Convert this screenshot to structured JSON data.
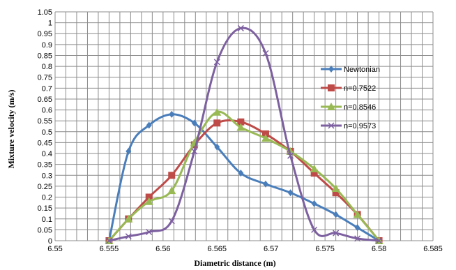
{
  "chart_data": {
    "type": "scatter",
    "xlabel": "Diametric distance (m)",
    "ylabel": "Mixture velocity (m/s)",
    "xlim": [
      6.55,
      6.585
    ],
    "ylim": [
      0,
      1.05
    ],
    "x_ticks": [
      "6.55",
      "6.555",
      "6.56",
      "6.565",
      "6.57",
      "6.575",
      "6.58",
      "6.585"
    ],
    "y_ticks": [
      "0",
      "0.05",
      "0.1",
      "0.15",
      "0.2",
      "0.25",
      "0.3",
      "0.35",
      "0.4",
      "0.45",
      "0.5",
      "0.55",
      "0.6",
      "0.65",
      "0.7",
      "0.75",
      "0.8",
      "0.85",
      "0.9",
      "0.95",
      "1",
      "1.05"
    ],
    "grid": true,
    "legend_position": "right",
    "series": [
      {
        "name": "Newtonian",
        "color": "#4a7ebb",
        "marker": "diamond",
        "x": [
          6.555,
          6.5568,
          6.5587,
          6.5608,
          6.5629,
          6.565,
          6.5672,
          6.5695,
          6.5718,
          6.574,
          6.576,
          6.578,
          6.58
        ],
        "y": [
          0.0,
          0.41,
          0.53,
          0.58,
          0.54,
          0.43,
          0.31,
          0.26,
          0.22,
          0.17,
          0.12,
          0.06,
          0.0
        ]
      },
      {
        "name": "n=0.7522",
        "color": "#be4b48",
        "marker": "square",
        "x": [
          6.555,
          6.5568,
          6.5587,
          6.5608,
          6.5629,
          6.565,
          6.5672,
          6.5695,
          6.5718,
          6.574,
          6.576,
          6.578,
          6.58
        ],
        "y": [
          0.0,
          0.1,
          0.2,
          0.3,
          0.44,
          0.54,
          0.545,
          0.49,
          0.41,
          0.31,
          0.22,
          0.12,
          0.0
        ]
      },
      {
        "name": "n=0.8546",
        "color": "#98b954",
        "marker": "triangle",
        "x": [
          6.555,
          6.5568,
          6.5587,
          6.5608,
          6.5629,
          6.565,
          6.5672,
          6.5695,
          6.5718,
          6.574,
          6.576,
          6.578,
          6.58
        ],
        "y": [
          0.0,
          0.1,
          0.18,
          0.23,
          0.45,
          0.59,
          0.52,
          0.47,
          0.41,
          0.33,
          0.24,
          0.12,
          0.0
        ]
      },
      {
        "name": "n=0.9573",
        "color": "#7d60a0",
        "marker": "x",
        "x": [
          6.555,
          6.5568,
          6.5587,
          6.5608,
          6.5629,
          6.565,
          6.5672,
          6.5695,
          6.5718,
          6.574,
          6.576,
          6.578,
          6.58
        ],
        "y": [
          0.0,
          0.02,
          0.04,
          0.09,
          0.41,
          0.82,
          0.975,
          0.86,
          0.39,
          0.05,
          0.035,
          0.01,
          0.0
        ]
      }
    ]
  }
}
